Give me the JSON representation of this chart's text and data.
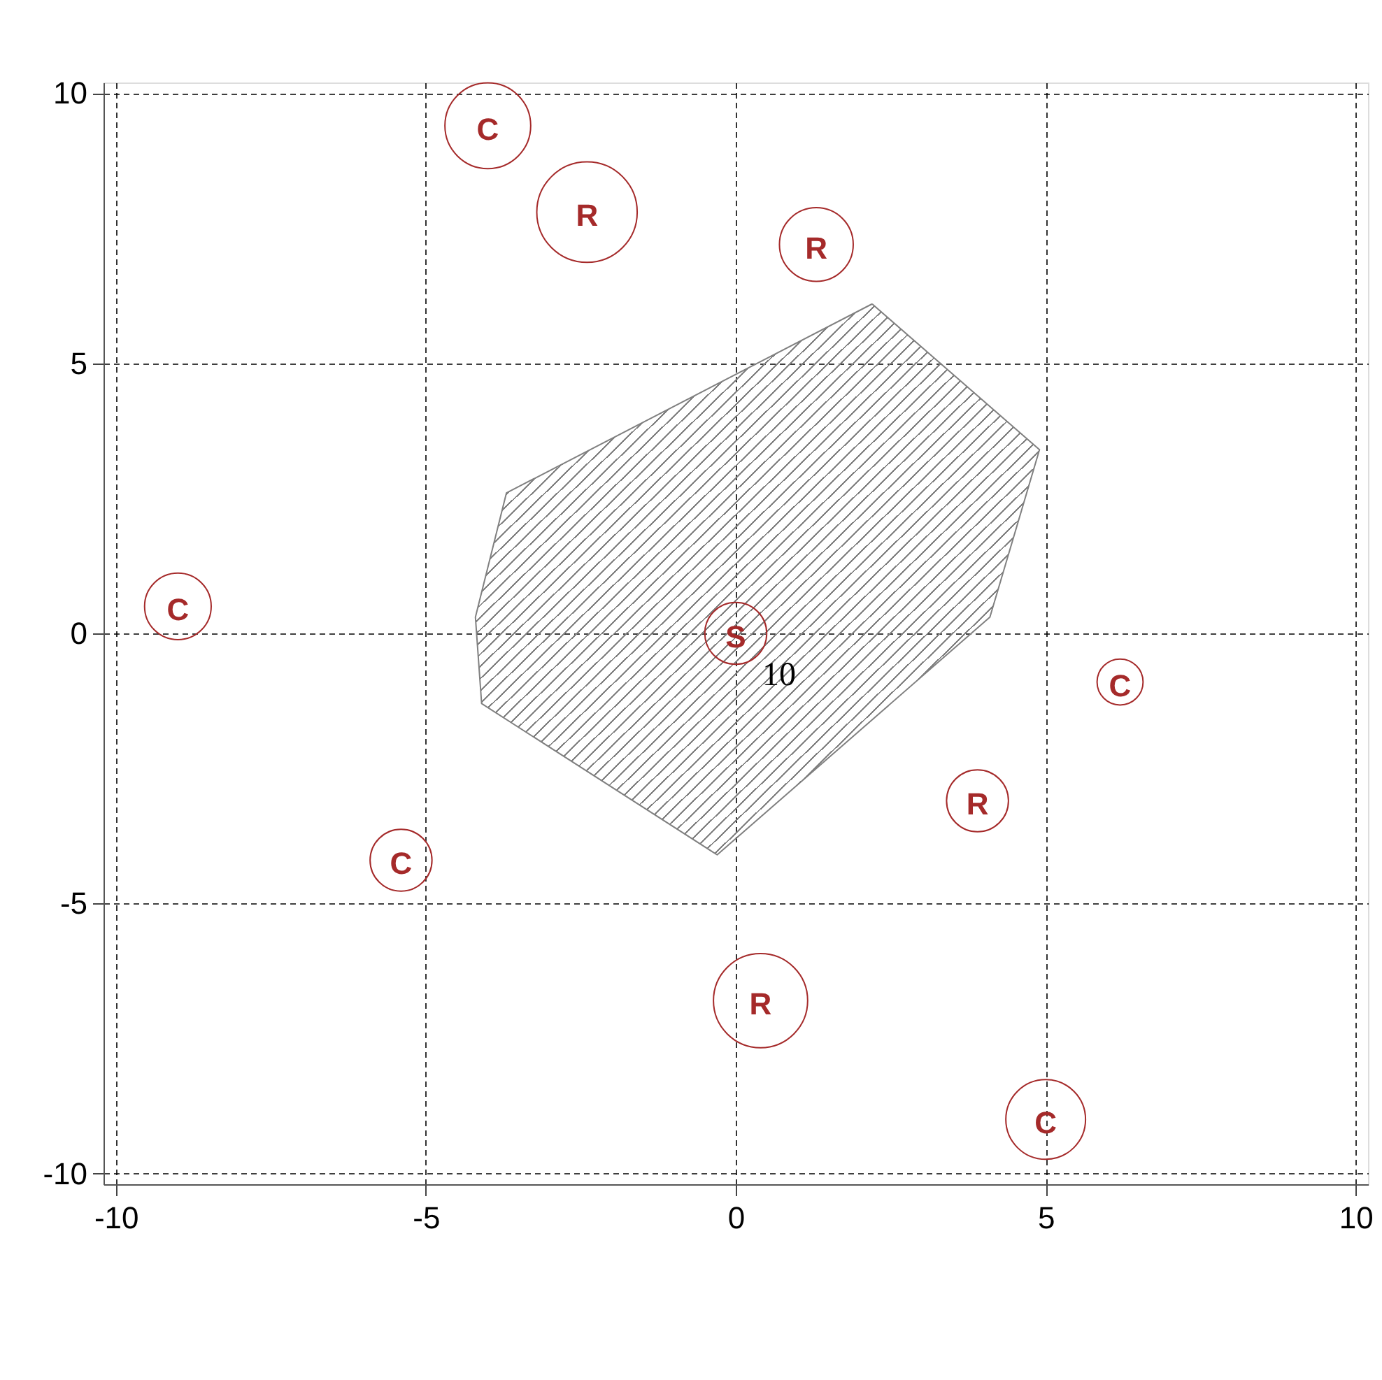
{
  "chart_data": {
    "type": "bubble",
    "xlim": [
      -10.2,
      10.2
    ],
    "ylim": [
      -10.2,
      10.2
    ],
    "xticks": [
      -10,
      -5,
      0,
      5,
      10
    ],
    "yticks": [
      -10,
      -5,
      0,
      5,
      10
    ],
    "grid": true,
    "series": [
      {
        "type": "area",
        "color": "#808080",
        "x": [
          2.2,
          4.9,
          4.1,
          -0.3,
          -4.1,
          -4.2,
          -3.7,
          2.2
        ],
        "values": [
          6.1,
          3.4,
          0.3,
          -4.1,
          -1.3,
          0.3,
          2.6,
          6.1
        ]
      },
      {
        "name": "C",
        "color": "#a52a2a",
        "x": [
          -4.0,
          -9.0,
          6.2,
          -5.4,
          5.0
        ],
        "values": [
          9.4,
          0.5,
          -0.9,
          -4.2,
          -9.0
        ],
        "sizes": [
          0.73,
          0.44,
          0.21,
          0.38,
          0.63
        ]
      },
      {
        "name": "R",
        "color": "#a52a2a",
        "x": [
          -2.4,
          1.3,
          3.9,
          0.4
        ],
        "values": [
          7.8,
          7.2,
          -3.1,
          -6.8
        ],
        "sizes": [
          1,
          0.54,
          0.38,
          0.88
        ]
      },
      {
        "name": "S",
        "color": "#a52a2a",
        "x": [
          0
        ],
        "values": [
          0
        ],
        "sizes": [
          0.38
        ]
      }
    ],
    "annotations": [
      {
        "text": "10",
        "x": 0,
        "y": 0
      }
    ]
  }
}
